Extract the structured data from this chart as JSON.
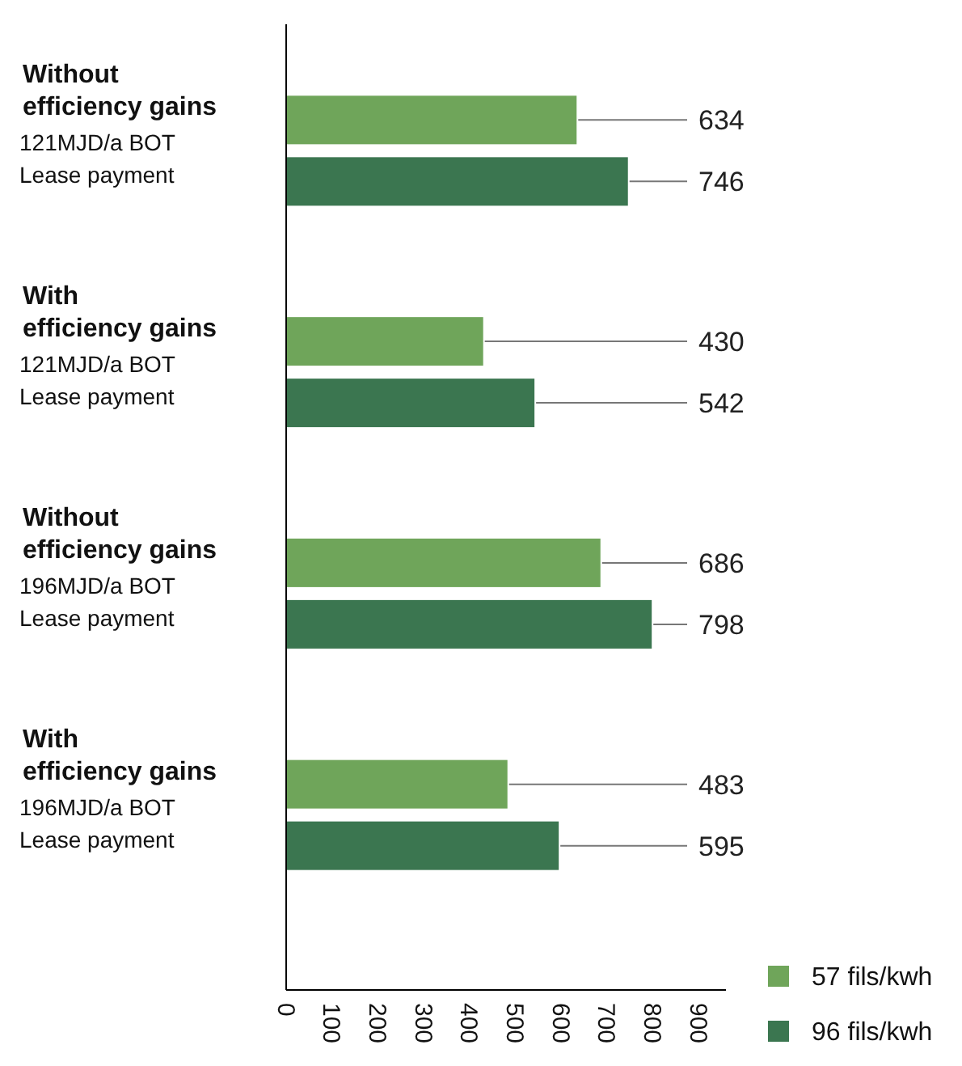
{
  "chart_data": {
    "type": "bar",
    "orientation": "horizontal",
    "categories": [
      "Without\nefficiency gains\n121MJD/a BOT\nLease payment",
      "With\nefficiency gains\n121MJD/a BOT\nLease payment",
      "Without\nefficiency gains\n196MJD/a BOT\nLease payment",
      "With\nefficiency gains\n196MJD/a BOT\nLease payment"
    ],
    "series": [
      {
        "name": "57 fils/kwh",
        "color": "#6fa55a",
        "values": [
          634,
          430,
          686,
          483
        ],
        "value_labels": [
          "634",
          "430",
          "686",
          "483"
        ]
      },
      {
        "name": "96 fils/kwh",
        "color": "#3b7650",
        "values": [
          746,
          542,
          798,
          595
        ],
        "value_labels": [
          "746",
          "542",
          "798",
          "595"
        ]
      }
    ],
    "xlim": [
      0,
      960
    ],
    "xticks": [
      0,
      100,
      200,
      300,
      400,
      500,
      600,
      700,
      800,
      900
    ],
    "legend": "bottom right"
  }
}
